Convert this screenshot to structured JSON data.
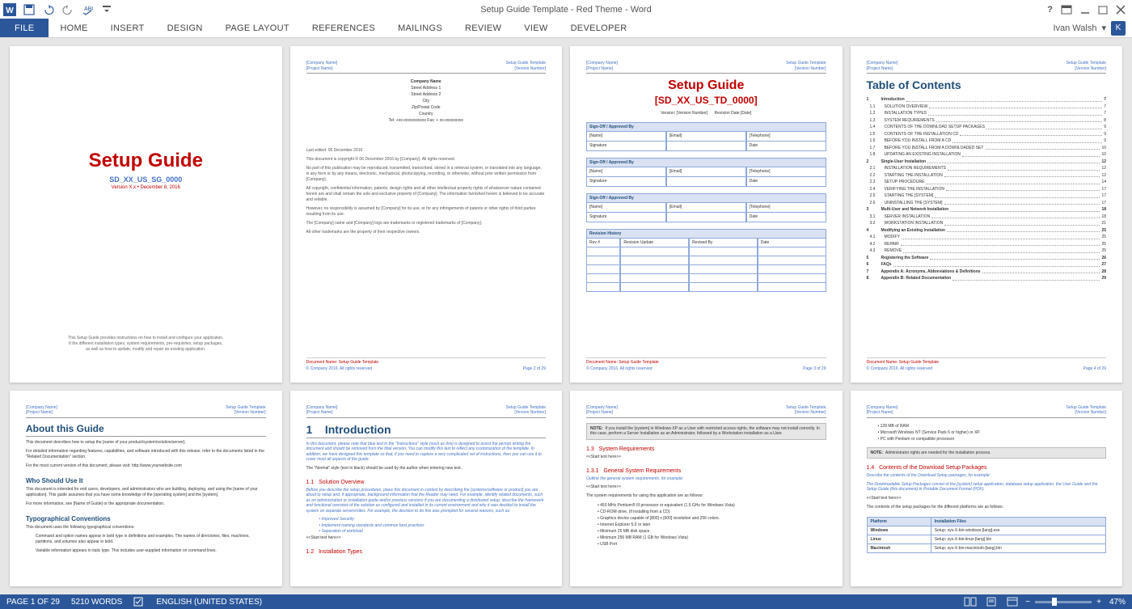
{
  "app": {
    "title": "Setup Guide Template - Red Theme - Word",
    "user": "Ivan Walsh",
    "user_initial": "K"
  },
  "ribbon": {
    "tabs": [
      "FILE",
      "HOME",
      "INSERT",
      "DESIGN",
      "PAGE LAYOUT",
      "REFERENCES",
      "MAILINGS",
      "REVIEW",
      "VIEW",
      "DEVELOPER"
    ]
  },
  "header_common": {
    "company": "[Company Name]",
    "project": "[Project Name]",
    "template": "Setup Guide Template",
    "version": "[Version Number]"
  },
  "footer_common": {
    "copyright": "© Company 2016. All rights reserved",
    "page2": "Page 2 of 29",
    "page3": "Page 3 of 29",
    "page4": "Page 4 of 29"
  },
  "docname": "Document Name: Setup Guide Template",
  "page1": {
    "title": "Setup Guide",
    "code": "SD_XX_US_SG_0000",
    "version": "Version X.x • December 8, 2016",
    "desc1": "This Setup Guide provides instructions on how to install and configure your application.",
    "desc2": "It the different installation types, system requirements, pre-requisites, setup packages,",
    "desc3": "as well as how to update, modify and repair an existing application."
  },
  "page2": {
    "addr": [
      "Company Name",
      "Street Address 1",
      "Street Address 2",
      "City",
      "Zip/Postal Code",
      "Country",
      "Tel: +xx-xxxxxxxxxxx Fax: + xx-xxxxxxxxx"
    ],
    "edited": "Last edited: 06 December 2016",
    "legal": [
      "This document is copyright © 06 December 2016 by [Company]. All rights reserved.",
      "No part of this publication may be reproduced, transmitted, transcribed, stored in a retrieval system, or translated into any language, in any form or by any means, electronic, mechanical, photocopying, recording, or otherwise, without prior written permission from [Company].",
      "All copyright, confidential information, patents, design rights and all other intellectual property rights of whatsoever nature contained herein are and shall remain the sole and exclusive property of [Company]. The information furnished herein is believed to be accurate and reliable.",
      "However, no responsibility is assumed by [Company] for its use, or for any infringements of patents or other rights of third parties resulting from its use.",
      "The [Company] name and [Company] logo are trademarks or registered trademarks of [Company].",
      "All other trademarks are the property of their respective owners."
    ]
  },
  "page3": {
    "title": "Setup Guide",
    "code": "[SD_XX_US_TD_0000]",
    "version_lbl": "Version: [Version Number]",
    "revdate_lbl": "Revision Date [Date]",
    "approval_hdr": "Sign-Off / Approved By",
    "cols": [
      "[Name]",
      "[Email]",
      "[Telephone]"
    ],
    "sig": "Signature",
    "date": "Date",
    "rev_hdr": "Revision History",
    "rev_cols": [
      "Rev #",
      "Revision Update",
      "Revised By",
      "Date"
    ]
  },
  "page4": {
    "toc_title": "Table of Contents",
    "entries": [
      {
        "l": 1,
        "n": "1",
        "t": "Introduction",
        "p": "7"
      },
      {
        "l": 2,
        "n": "1.1",
        "t": "SOLUTION OVERVIEW",
        "p": "7"
      },
      {
        "l": 2,
        "n": "1.2",
        "t": "INSTALLATION TYPES",
        "p": "7"
      },
      {
        "l": 2,
        "n": "1.3",
        "t": "SYSTEM REQUIREMENTS",
        "p": "8"
      },
      {
        "l": 2,
        "n": "1.4",
        "t": "CONTENTS OF THE DOWNLOAD SETUP PACKAGES",
        "p": "9"
      },
      {
        "l": 2,
        "n": "1.5",
        "t": "CONTENTS OF THE INSTALLATION CD",
        "p": "9"
      },
      {
        "l": 2,
        "n": "1.6",
        "t": "BEFORE YOU INSTALL FROM A CD",
        "p": "9"
      },
      {
        "l": 2,
        "n": "1.7",
        "t": "BEFORE YOU INSTALL FROM A DOWNLOADED SET",
        "p": "10"
      },
      {
        "l": 2,
        "n": "1.8",
        "t": "UPDATING AN EXISTING INSTALLATION",
        "p": "10"
      },
      {
        "l": 1,
        "n": "2",
        "t": "Single-User Installation",
        "p": "12"
      },
      {
        "l": 2,
        "n": "2.1",
        "t": "INSTALLATION REQUIREMENTS",
        "p": "12"
      },
      {
        "l": 2,
        "n": "2.2",
        "t": "STARTING THE INSTALLATION",
        "p": "12"
      },
      {
        "l": 2,
        "n": "2.3",
        "t": "SETUP PROCEDURE",
        "p": "14"
      },
      {
        "l": 2,
        "n": "2.4",
        "t": "VERIFYING THE INSTALLATION",
        "p": "17"
      },
      {
        "l": 2,
        "n": "2.5",
        "t": "STARTING THE [SYSTEM]",
        "p": "17"
      },
      {
        "l": 2,
        "n": "2.6",
        "t": "UNINSTALLING THE [SYSTEM]",
        "p": "17"
      },
      {
        "l": 1,
        "n": "3",
        "t": "Multi-User and Network Installation",
        "p": "18"
      },
      {
        "l": 2,
        "n": "3.1",
        "t": "SERVER INSTALLATION",
        "p": "18"
      },
      {
        "l": 2,
        "n": "3.2",
        "t": "WORKSTATION INSTALLATION",
        "p": "21"
      },
      {
        "l": 1,
        "n": "4",
        "t": "Modifying an Existing Installation",
        "p": "25"
      },
      {
        "l": 2,
        "n": "4.1",
        "t": "MODIFY",
        "p": "25"
      },
      {
        "l": 2,
        "n": "4.2",
        "t": "REPAIR",
        "p": "25"
      },
      {
        "l": 2,
        "n": "4.3",
        "t": "REMOVE",
        "p": "25"
      },
      {
        "l": 1,
        "n": "5",
        "t": "Registering the Software",
        "p": "26"
      },
      {
        "l": 1,
        "n": "6",
        "t": "FAQs",
        "p": "27"
      },
      {
        "l": 1,
        "n": "7",
        "t": "Appendix A: Acronyms, Abbreviations & Definitions",
        "p": "28"
      },
      {
        "l": 1,
        "n": "8",
        "t": "Appendix B: Related Documentation",
        "p": "29"
      }
    ]
  },
  "page5": {
    "h2": "About this Guide",
    "p1": "This document describes how to setup the [name of your product/system/solution/server].",
    "p2": "For detailed information regarding features, capabilities, and software introduced with this release, refer to the documents listed in the \"Related Documentation\" section.",
    "p3": "For the most current version of this document, please visit: http://www.yourwebsite.com",
    "h3a": "Who Should Use It",
    "p4": "This document is intended for end users, developers, and administrators who are building, deploying, and using the [name of your application]. This guide assumes that you have some knowledge of the [operating system] and the [system].",
    "p5": "For more information, see [Name of Guide] or the appropriate documentation.",
    "h3b": "Typographical Conventions",
    "p6": "This document uses the following typographical conventions:",
    "p7": "Command and option names appear in bold type in definitions and examples. The names of directories, files, machines, partitions, and volumes also appear in bold.",
    "p8": "Variable information appears in italic type. This includes user-supplied information on command lines."
  },
  "page6": {
    "h1": "1",
    "h1t": "Introduction",
    "intro": "In this document, please note that blue text in the \"Instructions\" style (such as this) is designed to assist the person writing the document and should be removed from the final version. You can modify this text to reflect any customization of the template. In addition, we have designed this template so that, if you need to capture a very complicated set of instructions, then you can use it to cover most all aspects of the guide.",
    "normal": "The \"Normal\" style (text in black) should be used by the author when entering new text.",
    "s11n": "1.1",
    "s11t": "Solution Overview",
    "s11p": "Before you describe the setup procedures, place this document in context by describing the [systems/software or product] you are about to setup and, if appropriate, background information that the Reader may need. For example, identify related documents, such as an administration or installation guide and/or previous versions if you are documenting a distributed setup; describe the framework and functional overview of the solution as configured and installed in its current environment and why it was decided to install the system on separate servers/sites. For example, the decision to do this was prompted for several reasons, such as:",
    "bullets": [
      "Improved Security",
      "Implement naming standards and common best practices",
      "Separation of workload"
    ],
    "start": "<<Start text here>>",
    "s12n": "1.2",
    "s12t": "Installation Types"
  },
  "page7": {
    "note_lbl": "NOTE:",
    "note": "If you install the [system] in Windows XP as a User with restricted access rights, the software may not install correctly. In this case, perform a Server Installation as an Administrator, followed by a Workstation installation as a User.",
    "s13n": "1.3",
    "s13t": "System Requirements",
    "start": "<<Start text here>>",
    "s131n": "1.3.1",
    "s131t": "General System Requirements",
    "outline": "Outline the general system requirements, for example:",
    "start2": "<<Start text here>>",
    "sysreq": "The system requirements for using this application are as follows:",
    "bullets": [
      "450 MHz Pentium® III processor or equivalent (1.5 GHz for Windows Vista)",
      "CD-ROM drive, (if installing from a CD)",
      "Graphics device capable of [800] x [600] resolution and 256 colors.",
      "Internet Explorer 5.0 or later",
      "Minimum 25 MB disk space",
      "Minimum 256 MB RAM (1 GB for Windows Vista)",
      "USB Port"
    ]
  },
  "page8": {
    "bullets": [
      "128 MB of RAM",
      "Microsoft Windows NT (Service Pack 6 or higher) or XP.",
      "PC with Pentium or compatible processor"
    ],
    "note_lbl": "NOTE:",
    "note": "Administrator rights are needed for the installation process.",
    "s14n": "1.4",
    "s14t": "Contents of the Download Setup Packages",
    "desc": "Describe the contents of the Download Setup packages, for example:",
    "italic": "The Downloadable Setup Packages consist of the [system] setup application, database setup application, the User Guide and the Setup Guide (this document) in Portable Document Format (PDF).",
    "start": "<<Start text here>>",
    "tbldesc": "The contents of the setup packages for the different platforms are as follows:",
    "table": {
      "headers": [
        "Platform",
        "Installation Files"
      ],
      "rows": [
        [
          "Windows",
          "Setup: sys-X-bin-windows-[lang].exe"
        ],
        [
          "Linux",
          "Setup: sys-X-bin-linux-[lang].bin"
        ],
        [
          "Macintosh",
          "Setup: sys-X-bin-macintosh-[lang].bin"
        ]
      ]
    }
  },
  "status": {
    "page": "PAGE 1 OF 29",
    "words": "5210 WORDS",
    "lang": "ENGLISH (UNITED STATES)",
    "zoom": "47%"
  },
  "colors": {
    "word_blue": "#2b579a",
    "red": "#c00000",
    "heading_blue": "#1f4e79",
    "link_blue": "#4472c4",
    "table_bg": "#d9e1f2",
    "table_border": "#8ea9db"
  }
}
